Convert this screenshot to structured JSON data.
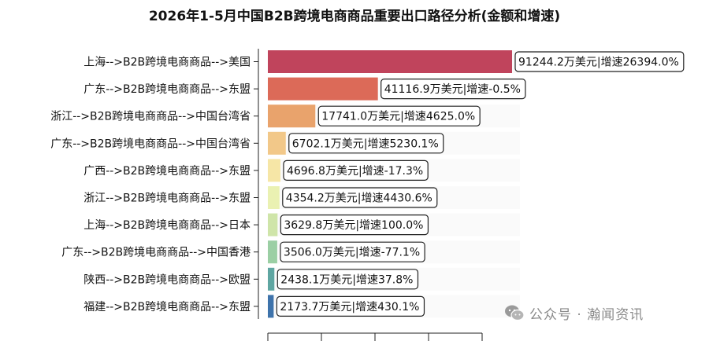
{
  "chart_data": {
    "type": "bar",
    "orientation": "horizontal",
    "title": "2026年1-5月中国B2B跨境电商商品重要出口路径分析(金额和增速)",
    "categories": [
      "上海-->B2B跨境电商商品-->美国",
      "广东-->B2B跨境电商商品-->东盟",
      "浙江-->B2B跨境电商商品-->中国台湾省",
      "广东-->B2B跨境电商商品-->中国台湾省",
      "广西-->B2B跨境电商商品-->东盟",
      "浙江-->B2B跨境电商商品-->东盟",
      "上海-->B2B跨境电商商品-->日本",
      "广东-->B2B跨境电商商品-->中国香港",
      "陕西-->B2B跨境电商商品-->欧盟",
      "福建-->B2B跨境电商商品-->东盟"
    ],
    "values": [
      91244.2,
      41116.9,
      17741.0,
      6702.1,
      4696.8,
      4354.2,
      3629.8,
      3506.0,
      2438.1,
      2173.7
    ],
    "data_labels": [
      "91244.2万美元|增速26394.0%",
      "41116.9万美元|增速-0.5%",
      "17741.0万美元|增速4625.0%",
      "6702.1万美元|增速5230.1%",
      "4696.8万美元|增速-17.3%",
      "4354.2万美元|增速4430.6%",
      "3629.8万美元|增速100.0%",
      "3506.0万美元|增速-77.1%",
      "2438.1万美元|增速37.8%",
      "2173.7万美元|增速430.1%"
    ],
    "colors": [
      "#c0445c",
      "#dc6a58",
      "#e9a36c",
      "#f2c889",
      "#f6e6a6",
      "#eaf1b2",
      "#cfe5a9",
      "#9bcfa4",
      "#5fa6a2",
      "#3e73ab"
    ],
    "xlim": [
      0,
      91244.2
    ],
    "xlabel": "",
    "ylabel": "",
    "grid": false,
    "legend": "none"
  },
  "watermark": {
    "icon": "wechat-icon",
    "text": "公众号 · 瀚闻资讯"
  }
}
